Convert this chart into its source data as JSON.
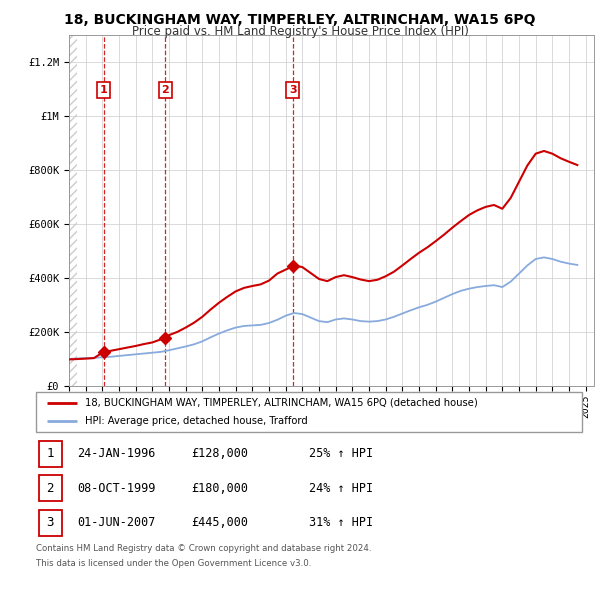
{
  "title": "18, BUCKINGHAM WAY, TIMPERLEY, ALTRINCHAM, WA15 6PQ",
  "subtitle": "Price paid vs. HM Land Registry's House Price Index (HPI)",
  "ylabel_ticks": [
    "£0",
    "£200K",
    "£400K",
    "£600K",
    "£800K",
    "£1M",
    "£1.2M"
  ],
  "ytick_vals": [
    0,
    200000,
    400000,
    600000,
    800000,
    1000000,
    1200000
  ],
  "ylim": [
    0,
    1300000
  ],
  "xlim_start": 1994.0,
  "xlim_end": 2025.5,
  "transactions": [
    {
      "num": 1,
      "date": "24-JAN-1996",
      "price": 128000,
      "year": 1996.07,
      "pct": "25%",
      "dir": "↑"
    },
    {
      "num": 2,
      "date": "08-OCT-1999",
      "price": 180000,
      "year": 1999.77,
      "pct": "24%",
      "dir": "↑"
    },
    {
      "num": 3,
      "date": "01-JUN-2007",
      "price": 445000,
      "year": 2007.42,
      "pct": "31%",
      "dir": "↑"
    }
  ],
  "property_line_color": "#cc0000",
  "hpi_line_color": "#88aadd",
  "legend_property_label": "18, BUCKINGHAM WAY, TIMPERLEY, ALTRINCHAM, WA15 6PQ (detached house)",
  "legend_hpi_label": "HPI: Average price, detached house, Trafford",
  "footnote1": "Contains HM Land Registry data © Crown copyright and database right 2024.",
  "footnote2": "This data is licensed under the Open Government Licence v3.0.",
  "hpi_data": [
    [
      1994,
      102000
    ],
    [
      1994.5,
      103500
    ],
    [
      1995,
      105000
    ],
    [
      1995.5,
      106000
    ],
    [
      1996,
      108000
    ],
    [
      1996.5,
      110000
    ],
    [
      1997,
      113000
    ],
    [
      1997.5,
      116000
    ],
    [
      1998,
      119000
    ],
    [
      1998.5,
      122000
    ],
    [
      1999,
      125000
    ],
    [
      1999.5,
      128000
    ],
    [
      2000,
      134000
    ],
    [
      2000.5,
      141000
    ],
    [
      2001,
      148000
    ],
    [
      2001.5,
      156000
    ],
    [
      2002,
      167000
    ],
    [
      2002.5,
      182000
    ],
    [
      2003,
      196000
    ],
    [
      2003.5,
      208000
    ],
    [
      2004,
      218000
    ],
    [
      2004.5,
      224000
    ],
    [
      2005,
      226000
    ],
    [
      2005.5,
      228000
    ],
    [
      2006,
      235000
    ],
    [
      2006.5,
      247000
    ],
    [
      2007,
      262000
    ],
    [
      2007.5,
      272000
    ],
    [
      2008,
      268000
    ],
    [
      2008.5,
      255000
    ],
    [
      2009,
      242000
    ],
    [
      2009.5,
      238000
    ],
    [
      2010,
      248000
    ],
    [
      2010.5,
      252000
    ],
    [
      2011,
      248000
    ],
    [
      2011.5,
      242000
    ],
    [
      2012,
      240000
    ],
    [
      2012.5,
      242000
    ],
    [
      2013,
      248000
    ],
    [
      2013.5,
      258000
    ],
    [
      2014,
      270000
    ],
    [
      2014.5,
      282000
    ],
    [
      2015,
      293000
    ],
    [
      2015.5,
      302000
    ],
    [
      2016,
      314000
    ],
    [
      2016.5,
      328000
    ],
    [
      2017,
      342000
    ],
    [
      2017.5,
      354000
    ],
    [
      2018,
      362000
    ],
    [
      2018.5,
      368000
    ],
    [
      2019,
      372000
    ],
    [
      2019.5,
      375000
    ],
    [
      2020,
      368000
    ],
    [
      2020.5,
      388000
    ],
    [
      2021,
      418000
    ],
    [
      2021.5,
      448000
    ],
    [
      2022,
      472000
    ],
    [
      2022.5,
      478000
    ],
    [
      2023,
      472000
    ],
    [
      2023.5,
      462000
    ],
    [
      2024,
      455000
    ],
    [
      2024.5,
      450000
    ]
  ],
  "prop_data": [
    [
      1994,
      100000
    ],
    [
      1994.5,
      101500
    ],
    [
      1995,
      103000
    ],
    [
      1995.5,
      105000
    ],
    [
      1996.07,
      128000
    ],
    [
      1996.5,
      132000
    ],
    [
      1997,
      138000
    ],
    [
      1997.5,
      144000
    ],
    [
      1998,
      150000
    ],
    [
      1998.5,
      157000
    ],
    [
      1999,
      163000
    ],
    [
      1999.77,
      180000
    ],
    [
      2000,
      190000
    ],
    [
      2000.5,
      202000
    ],
    [
      2001,
      218000
    ],
    [
      2001.5,
      236000
    ],
    [
      2002,
      258000
    ],
    [
      2002.5,
      285000
    ],
    [
      2003,
      310000
    ],
    [
      2003.5,
      332000
    ],
    [
      2004,
      352000
    ],
    [
      2004.5,
      365000
    ],
    [
      2005,
      372000
    ],
    [
      2005.5,
      378000
    ],
    [
      2006,
      392000
    ],
    [
      2006.5,
      418000
    ],
    [
      2007.42,
      445000
    ],
    [
      2007.5,
      448000
    ],
    [
      2008,
      442000
    ],
    [
      2008.5,
      420000
    ],
    [
      2009,
      398000
    ],
    [
      2009.5,
      390000
    ],
    [
      2010,
      405000
    ],
    [
      2010.5,
      412000
    ],
    [
      2011,
      405000
    ],
    [
      2011.5,
      396000
    ],
    [
      2012,
      390000
    ],
    [
      2012.5,
      395000
    ],
    [
      2013,
      408000
    ],
    [
      2013.5,
      425000
    ],
    [
      2014,
      448000
    ],
    [
      2014.5,
      472000
    ],
    [
      2015,
      495000
    ],
    [
      2015.5,
      515000
    ],
    [
      2016,
      538000
    ],
    [
      2016.5,
      562000
    ],
    [
      2017,
      588000
    ],
    [
      2017.5,
      612000
    ],
    [
      2018,
      635000
    ],
    [
      2018.5,
      652000
    ],
    [
      2019,
      665000
    ],
    [
      2019.5,
      672000
    ],
    [
      2020,
      658000
    ],
    [
      2020.5,
      698000
    ],
    [
      2021,
      758000
    ],
    [
      2021.5,
      818000
    ],
    [
      2022,
      862000
    ],
    [
      2022.5,
      872000
    ],
    [
      2023,
      862000
    ],
    [
      2023.5,
      845000
    ],
    [
      2024,
      832000
    ],
    [
      2024.5,
      820000
    ]
  ],
  "xtick_years": [
    1994,
    1995,
    1996,
    1997,
    1998,
    1999,
    2000,
    2001,
    2002,
    2003,
    2004,
    2005,
    2006,
    2007,
    2008,
    2009,
    2010,
    2011,
    2012,
    2013,
    2014,
    2015,
    2016,
    2017,
    2018,
    2019,
    2020,
    2021,
    2022,
    2023,
    2024,
    2025
  ]
}
